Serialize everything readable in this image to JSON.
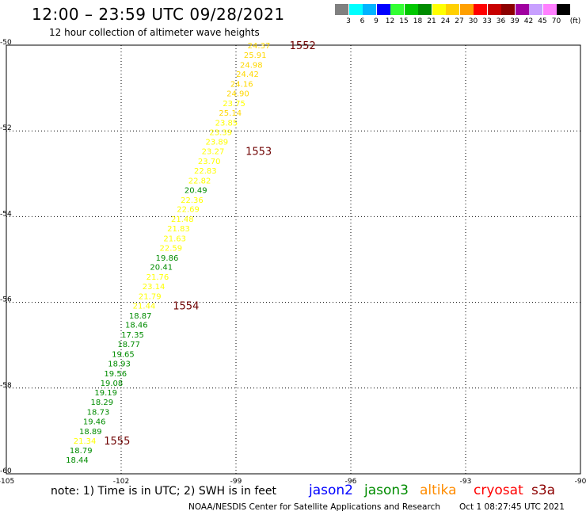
{
  "header": {
    "title": "12:00 – 23:59 UTC 09/28/2021",
    "subtitle": "12 hour collection of altimeter wave heights"
  },
  "legend": {
    "unit": "(ft)",
    "bins": [
      {
        "label": "3",
        "color": "#808080"
      },
      {
        "label": "6",
        "color": "#00ffff"
      },
      {
        "label": "9",
        "color": "#00b4ff"
      },
      {
        "label": "12",
        "color": "#0000ff"
      },
      {
        "label": "15",
        "color": "#33ff33"
      },
      {
        "label": "18",
        "color": "#00c800"
      },
      {
        "label": "21",
        "color": "#008c00"
      },
      {
        "label": "24",
        "color": "#ffff00"
      },
      {
        "label": "27",
        "color": "#ffd000"
      },
      {
        "label": "30",
        "color": "#ffa000"
      },
      {
        "label": "33",
        "color": "#ff0000"
      },
      {
        "label": "36",
        "color": "#c80000"
      },
      {
        "label": "39",
        "color": "#8c0000"
      },
      {
        "label": "42",
        "color": "#a000a0"
      },
      {
        "label": "45",
        "color": "#c8a0ff"
      },
      {
        "label": "70",
        "color": "#ff80ff"
      },
      {
        "label": "",
        "color": "#000000"
      }
    ]
  },
  "map": {
    "lon_ticks": [
      "-105",
      "-102",
      "-99",
      "-96",
      "-93",
      "-90"
    ],
    "lat_ticks": [
      "-50",
      "-52",
      "-54",
      "-56",
      "-58",
      "-60"
    ],
    "lon_range": [
      -105,
      -90
    ],
    "lat_range": [
      -50,
      -60
    ],
    "grid": true
  },
  "observations": [
    {
      "value": "24.37",
      "color": "#ffd700",
      "lon": -98.4,
      "lat": -50.0
    },
    {
      "value": "25.91",
      "color": "#ffd700",
      "lon": -98.5,
      "lat": -50.22
    },
    {
      "value": "24.98",
      "color": "#ffd700",
      "lon": -98.6,
      "lat": -50.45
    },
    {
      "value": "24.42",
      "color": "#ffd700",
      "lon": -98.7,
      "lat": -50.67
    },
    {
      "value": "24.16",
      "color": "#ffd700",
      "lon": -98.85,
      "lat": -50.9
    },
    {
      "value": "24.90",
      "color": "#ffd700",
      "lon": -98.95,
      "lat": -51.12
    },
    {
      "value": "23.75",
      "color": "#ffff00",
      "lon": -99.05,
      "lat": -51.35
    },
    {
      "value": "25.14",
      "color": "#ffd700",
      "lon": -99.15,
      "lat": -51.57
    },
    {
      "value": "23.85",
      "color": "#ffff00",
      "lon": -99.25,
      "lat": -51.8
    },
    {
      "value": "23.39",
      "color": "#ffff00",
      "lon": -99.4,
      "lat": -52.02
    },
    {
      "value": "23.89",
      "color": "#ffff00",
      "lon": -99.5,
      "lat": -52.25
    },
    {
      "value": "23.27",
      "color": "#ffff00",
      "lon": -99.6,
      "lat": -52.47
    },
    {
      "value": "23.70",
      "color": "#ffff00",
      "lon": -99.7,
      "lat": -52.7
    },
    {
      "value": "22.83",
      "color": "#ffff00",
      "lon": -99.8,
      "lat": -52.92
    },
    {
      "value": "22.82",
      "color": "#ffff00",
      "lon": -99.95,
      "lat": -53.15
    },
    {
      "value": "20.49",
      "color": "#008c00",
      "lon": -100.05,
      "lat": -53.37
    },
    {
      "value": "22.36",
      "color": "#ffff00",
      "lon": -100.15,
      "lat": -53.6
    },
    {
      "value": "22.69",
      "color": "#ffff00",
      "lon": -100.25,
      "lat": -53.82
    },
    {
      "value": "21.48",
      "color": "#ffff00",
      "lon": -100.4,
      "lat": -54.05
    },
    {
      "value": "21.83",
      "color": "#ffff00",
      "lon": -100.5,
      "lat": -54.27
    },
    {
      "value": "21.63",
      "color": "#ffff00",
      "lon": -100.6,
      "lat": -54.5
    },
    {
      "value": "22.59",
      "color": "#ffff00",
      "lon": -100.7,
      "lat": -54.72
    },
    {
      "value": "19.86",
      "color": "#008c00",
      "lon": -100.8,
      "lat": -54.95
    },
    {
      "value": "20.41",
      "color": "#008c00",
      "lon": -100.95,
      "lat": -55.17
    },
    {
      "value": "21.76",
      "color": "#ffff00",
      "lon": -101.05,
      "lat": -55.4
    },
    {
      "value": "23.14",
      "color": "#ffff00",
      "lon": -101.15,
      "lat": -55.62
    },
    {
      "value": "21.79",
      "color": "#ffff00",
      "lon": -101.25,
      "lat": -55.85
    },
    {
      "value": "21.44",
      "color": "#ffff00",
      "lon": -101.4,
      "lat": -56.07
    },
    {
      "value": "18.87",
      "color": "#008c00",
      "lon": -101.5,
      "lat": -56.3
    },
    {
      "value": "18.46",
      "color": "#008c00",
      "lon": -101.6,
      "lat": -56.52
    },
    {
      "value": "17.35",
      "color": "#008c00",
      "lon": -101.7,
      "lat": -56.75
    },
    {
      "value": "18.77",
      "color": "#008c00",
      "lon": -101.8,
      "lat": -56.97
    },
    {
      "value": "19.65",
      "color": "#008c00",
      "lon": -101.95,
      "lat": -57.2
    },
    {
      "value": "18.93",
      "color": "#008c00",
      "lon": -102.05,
      "lat": -57.42
    },
    {
      "value": "19.56",
      "color": "#008c00",
      "lon": -102.15,
      "lat": -57.65
    },
    {
      "value": "19.08",
      "color": "#008c00",
      "lon": -102.25,
      "lat": -57.87
    },
    {
      "value": "19.19",
      "color": "#008c00",
      "lon": -102.4,
      "lat": -58.1
    },
    {
      "value": "18.29",
      "color": "#008c00",
      "lon": -102.5,
      "lat": -58.32
    },
    {
      "value": "18.73",
      "color": "#008c00",
      "lon": -102.6,
      "lat": -58.55
    },
    {
      "value": "19.46",
      "color": "#008c00",
      "lon": -102.7,
      "lat": -58.77
    },
    {
      "value": "18.89",
      "color": "#008c00",
      "lon": -102.8,
      "lat": -59.0
    },
    {
      "value": "21.34",
      "color": "#ffff00",
      "lon": -102.95,
      "lat": -59.22
    },
    {
      "value": "18.79",
      "color": "#008c00",
      "lon": -103.05,
      "lat": -59.45
    },
    {
      "value": "18.44",
      "color": "#008c00",
      "lon": -103.15,
      "lat": -59.67
    }
  ],
  "time_marks": [
    {
      "label": "1552",
      "lon": -97.6,
      "lat": -50.0
    },
    {
      "label": "1553",
      "lon": -98.75,
      "lat": -52.47
    },
    {
      "label": "1554",
      "lon": -100.65,
      "lat": -56.07
    },
    {
      "label": "1555",
      "lon": -102.45,
      "lat": -59.22
    }
  ],
  "footer": {
    "note": "note: 1) Time is in UTC; 2) SWH is in feet",
    "satellites": [
      {
        "name": "jason2",
        "color": "#0000ff"
      },
      {
        "name": "jason3",
        "color": "#008c00"
      },
      {
        "name": "altika",
        "color": "#ff8c00"
      },
      {
        "name": "cryosat",
        "color": "#ff0000"
      },
      {
        "name": "s3a",
        "color": "#8c0000"
      }
    ],
    "credit": "NOAA/NESDIS Center for Satellite Applications and Research",
    "timestamp": "Oct  1 08:27:45 UTC 2021"
  }
}
